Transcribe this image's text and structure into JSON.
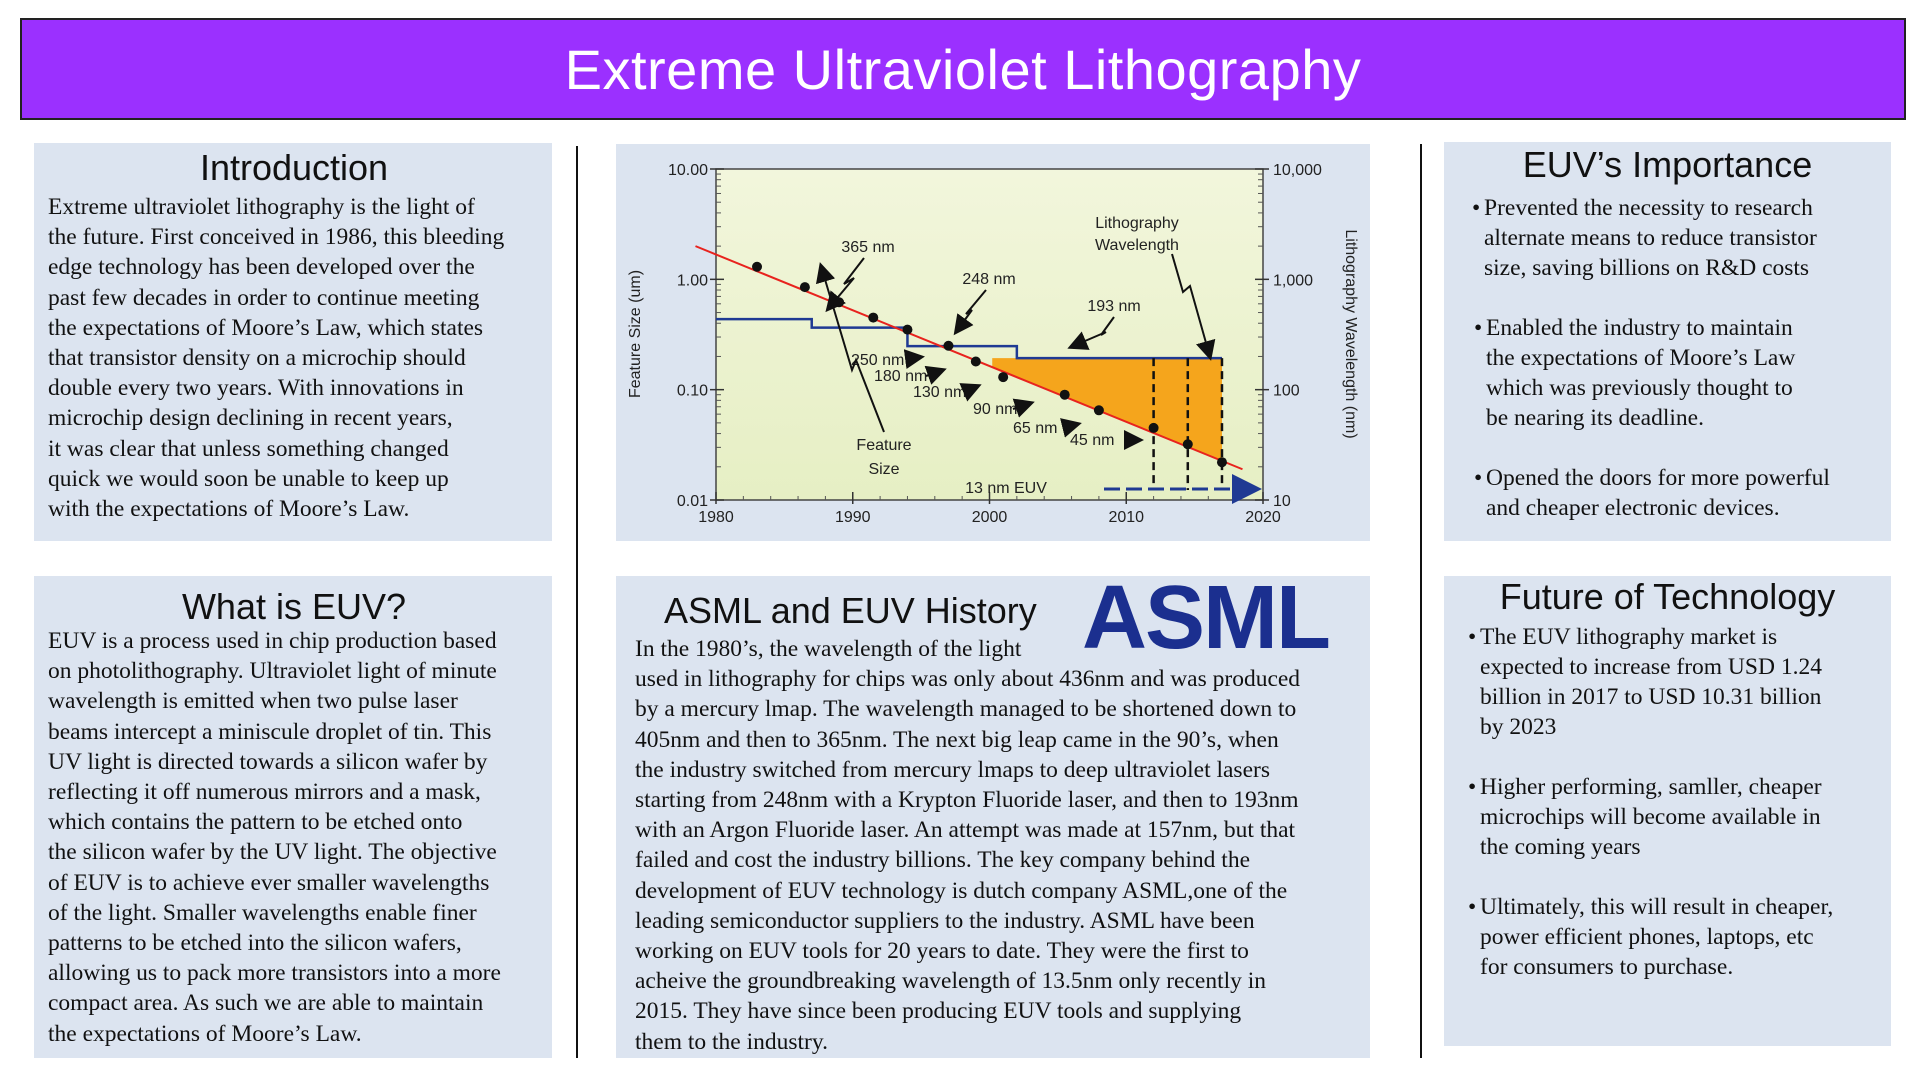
{
  "title": "Extreme Ultraviolet Lithography",
  "introduction": {
    "heading": "Introduction",
    "lines": [
      "Extreme ultraviolet lithography is the light of",
      "the future. First conceived in 1986, this bleeding",
      "edge technology has been developed over the",
      "past few decades in order to continue meeting",
      "the expectations of Moore’s Law, which states",
      "that transistor density on a microchip should",
      "double every two years. With innovations in",
      "microchip design declining in recent years,",
      "it was clear that unless something changed",
      "quick we would soon be unable to keep up",
      "with the expectations of Moore’s Law."
    ]
  },
  "what_is_euv": {
    "heading": "What is EUV?",
    "lines": [
      "EUV is a process used in chip production based",
      "on photolithography. Ultraviolet light of minute",
      "wavelength is emitted when two pulse laser",
      "beams intercept a miniscule droplet of tin. This",
      "UV light is directed towards a silicon wafer by",
      "reflecting it off numerous mirrors and a mask,",
      "which contains the pattern to be etched onto",
      "the silicon wafer by the UV light. The objective",
      "of EUV is to achieve ever smaller wavelengths",
      "of the light. Smaller wavelengths enable finer",
      "patterns to be etched into the silicon wafers,",
      "allowing us to pack more transistors into a more",
      "compact area. As such we are able to maintain",
      "the expectations of Moore’s Law."
    ]
  },
  "asml_history": {
    "heading": "ASML and EUV History",
    "logo": "ASML",
    "lines": [
      "In the 1980’s, the wavelength of the light",
      "used in lithography for chips was only about 436nm and was produced",
      "by a mercury lmap. The wavelength managed to be shortened down to",
      "405nm and then to 365nm. The next big leap came in the 90’s, when",
      "the industry switched from mercury lmaps to deep ultraviolet lasers",
      "starting from 248nm with a Krypton Fluoride laser, and then to 193nm",
      "with an Argon Fluoride laser. An attempt was made at 157nm, but that",
      "failed and cost the industry billions. The key company behind the",
      "development of EUV technology is dutch company ASML,one of the",
      "leading semiconductor suppliers to the industry. ASML have been",
      "working on EUV tools for 20 years to date. They were the first to",
      "acheive the groundbreaking wavelength of 13.5nm only recently in",
      "2015. They have since been producing EUV tools and supplying",
      "them to the industry."
    ]
  },
  "importance": {
    "heading": "EUV’s Importance",
    "bullets": [
      [
        "Prevented the necessity to research",
        "alternate means to reduce transistor",
        "size, saving billions on R&D costs"
      ],
      [
        "Enabled the industry to maintain",
        "the expectations of Moore’s Law",
        "which was previously thought to",
        "be nearing its deadline."
      ],
      [
        "Opened the doors for more powerful",
        "and cheaper electronic devices."
      ]
    ]
  },
  "future": {
    "heading": "Future of Technology",
    "bullets": [
      [
        "The EUV lithography market is",
        "expected to increase from USD 1.24",
        "billion in 2017 to USD 10.31 billion",
        "by 2023"
      ],
      [
        "Higher performing, samller, cheaper",
        "microchips will become available in",
        "the coming years"
      ],
      [
        "Ultimately, this will result in cheaper,",
        "power efficient phones, laptops, etc",
        "for consumers to purchase."
      ]
    ]
  },
  "chart_data": {
    "type": "line",
    "xlabel": "",
    "ylabel": "Feature Size (um)",
    "y2label": "Lithography Wavelength (nm)",
    "xlim": [
      1980,
      2020
    ],
    "ylim": [
      0.01,
      10
    ],
    "y2lim": [
      10,
      10000
    ],
    "yscale": "log",
    "x_ticks": [
      "1980",
      "1990",
      "2000",
      "2010",
      "2020"
    ],
    "y_ticks": [
      "10.00",
      "1.00",
      "0.10",
      "0.01"
    ],
    "y2_ticks": [
      "10,000",
      "1,000",
      "100",
      "10"
    ],
    "colors": {
      "feature": "#e8231e",
      "wavelength": "#1f3a93",
      "fill": "#f5a51c"
    },
    "series": [
      {
        "name": "Feature Size",
        "color": "#e8231e",
        "points": [
          [
            1983,
            1.3
          ],
          [
            1986.5,
            0.85
          ],
          [
            1989,
            0.62
          ],
          [
            1991.5,
            0.45
          ],
          [
            1994,
            0.35
          ],
          [
            1997,
            0.25
          ],
          [
            1999,
            0.18
          ],
          [
            2001,
            0.13
          ],
          [
            2005.5,
            0.09
          ],
          [
            2008,
            0.065
          ],
          [
            2012,
            0.045
          ],
          [
            2014.5,
            0.032
          ],
          [
            2017,
            0.022
          ]
        ]
      },
      {
        "name": "Lithography Wavelength",
        "color": "#1f3a93",
        "points": [
          [
            1980,
            436
          ],
          [
            1987,
            436
          ],
          [
            1987,
            365
          ],
          [
            1994,
            365
          ],
          [
            1994,
            248
          ],
          [
            2002,
            248
          ],
          [
            2002,
            193
          ],
          [
            2017,
            193
          ]
        ]
      }
    ],
    "euv_verticals": [
      2012,
      2014.5,
      2017
    ],
    "annotations": {
      "nm_365": "365 nm",
      "nm_248": "248 nm",
      "nm_193": "193 nm",
      "litho": "Lithography",
      "wavelength": "Wavelength",
      "n250": "250 nm",
      "n180": "180 nm",
      "n130": "130 nm",
      "n90": "90 nm",
      "n65": "65 nm",
      "n45": "45 nm",
      "feature": "Feature",
      "size": "Size",
      "euv": "13 nm EUV"
    }
  }
}
